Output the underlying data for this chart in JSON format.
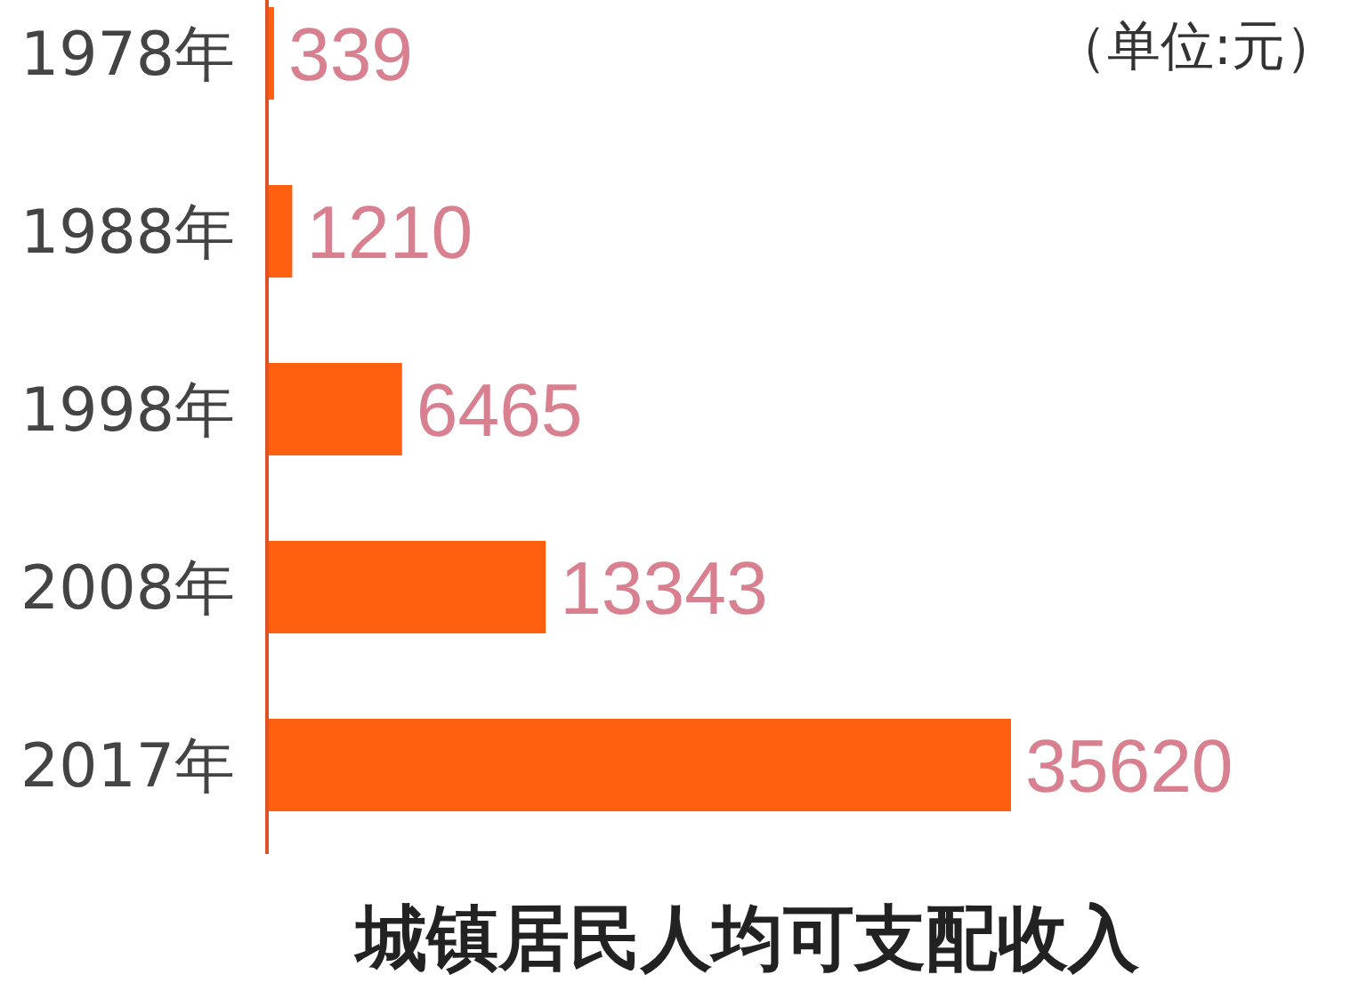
{
  "chart_data": {
    "type": "bar",
    "orientation": "horizontal",
    "title": "城镇居民人均可支配收入",
    "annotations": [
      "（单位:元）"
    ],
    "categories": [
      "1978年",
      "1988年",
      "1998年",
      "2008年",
      "2017年"
    ],
    "values": [
      339,
      1210,
      6465,
      13343,
      35620
    ],
    "color": "#ff6010",
    "data_labels": true
  }
}
